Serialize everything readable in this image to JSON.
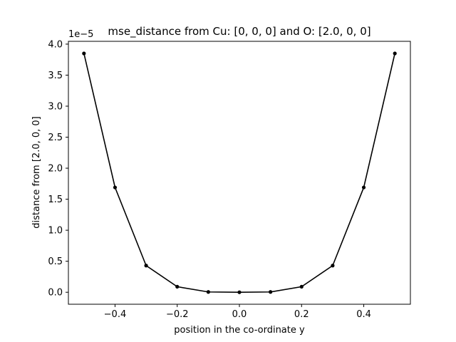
{
  "chart_data": {
    "type": "line",
    "title": "mse_distance from Cu: [0, 0, 0] and O: [2.0, 0, 0]",
    "xlabel": "position in the co-ordinate y",
    "ylabel": "distance from [2.0, 0, 0]",
    "offset_text": "1e−5",
    "y_scale_factor": 1e-05,
    "xlim": [
      -0.55,
      0.55
    ],
    "ylim": [
      -0.193,
      4.045
    ],
    "xticks": [
      -0.4,
      -0.2,
      0.0,
      0.2,
      0.4
    ],
    "xtick_labels": [
      "−0.4",
      "−0.2",
      "0.0",
      "0.2",
      "0.4"
    ],
    "yticks": [
      0.0,
      0.5,
      1.0,
      1.5,
      2.0,
      2.5,
      3.0,
      3.5,
      4.0
    ],
    "ytick_labels": [
      "0.0",
      "0.5",
      "1.0",
      "1.5",
      "2.0",
      "2.5",
      "3.0",
      "3.5",
      "4.0"
    ],
    "grid": false,
    "line_color": "#000000",
    "series": [
      {
        "x": [
          -0.5,
          -0.4,
          -0.3,
          -0.2,
          -0.1,
          0.0,
          0.1,
          0.2,
          0.3,
          0.4,
          0.5
        ],
        "y": [
          3.85,
          1.69,
          0.43,
          0.09,
          0.005,
          0.0,
          0.005,
          0.09,
          0.43,
          1.69,
          3.85
        ]
      }
    ]
  }
}
